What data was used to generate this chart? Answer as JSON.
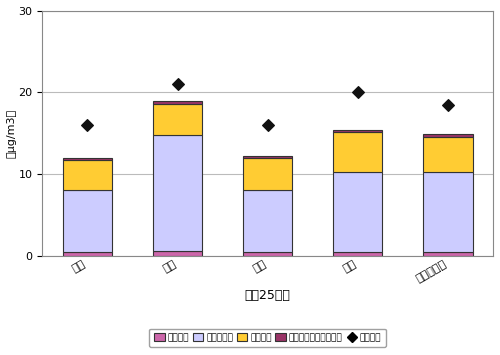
{
  "categories": [
    "春季",
    "夏季",
    "秋季",
    "冬季",
    "年度平均値"
  ],
  "metal": [
    0.5,
    0.6,
    0.5,
    0.5,
    0.5
  ],
  "ion": [
    7.5,
    14.2,
    7.5,
    9.8,
    9.8
  ],
  "carbon": [
    3.7,
    3.8,
    4.0,
    4.8,
    4.3
  ],
  "pah": [
    0.3,
    0.3,
    0.2,
    0.3,
    0.3
  ],
  "mass": [
    16.0,
    21.0,
    16.0,
    20.0,
    18.5
  ],
  "bar_colors": {
    "metal": "#cc66aa",
    "ion": "#ccccff",
    "carbon": "#ffcc33",
    "pah": "#993366"
  },
  "mass_marker_color": "#111111",
  "ylim": [
    0,
    30
  ],
  "yticks": [
    0,
    10,
    20,
    30
  ],
  "ylabel": "（μg/m3）",
  "xlabel": "平成25年度",
  "legend_labels": [
    "金属成分",
    "イオン成分",
    "炭素成分",
    "多環芳香族炭化水素類",
    "質量濃度"
  ],
  "grid_color": "#bbbbbb",
  "background_color": "#ffffff",
  "bar_width": 0.55,
  "bar_edge_color": "#333333",
  "bar_edge_width": 0.8
}
